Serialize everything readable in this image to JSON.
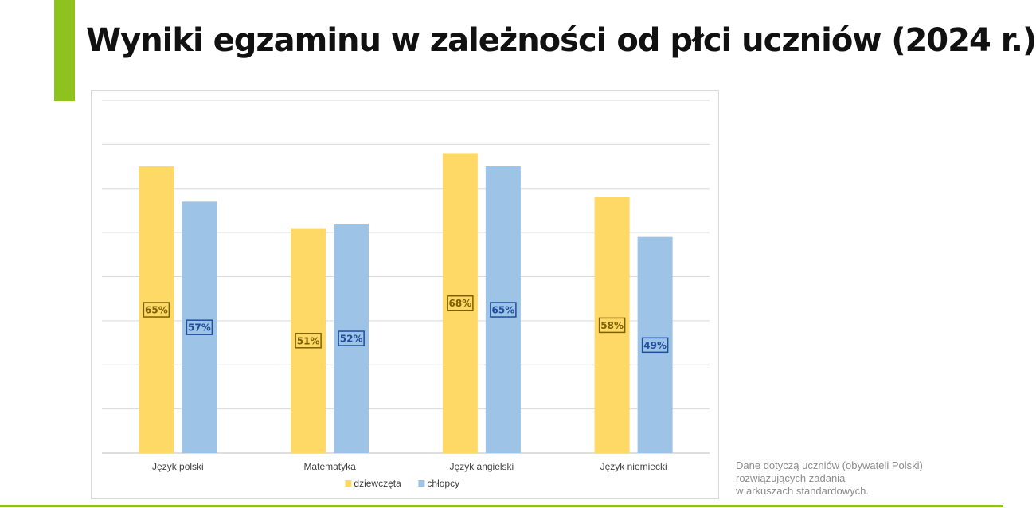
{
  "page": {
    "title": "Wyniki egzaminu w zależności od płci uczniów (2024 r.)",
    "accent_color": "#8dc21f",
    "footnote": [
      "Dane dotyczą uczniów (obywateli Polski)",
      "rozwiązujących zadania",
      "w arkuszach standardowych."
    ]
  },
  "chart_data": {
    "type": "bar",
    "categories": [
      "Język polski",
      "Matematyka",
      "Język angielski",
      "Język niemiecki"
    ],
    "series": [
      {
        "name": "dziewczęta",
        "values": [
          65,
          51,
          68,
          58
        ],
        "color": "#ffd966",
        "label_color": "#7f6000"
      },
      {
        "name": "chłopcy",
        "values": [
          57,
          52,
          65,
          49
        ],
        "color": "#9dc3e6",
        "label_color": "#1f4e9c"
      }
    ],
    "value_suffix": "%",
    "ylim": [
      0,
      80
    ],
    "y_gridline_step": 10,
    "grid": true,
    "legend": "bottom"
  }
}
